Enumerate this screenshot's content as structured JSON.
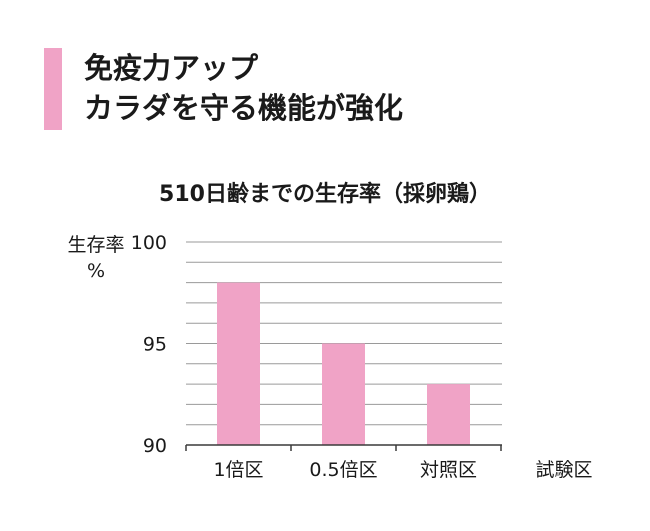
{
  "header": {
    "line1": "免疫力アップ",
    "line2": "カラダを守る機能が強化"
  },
  "chart_data": {
    "type": "bar",
    "title": "510日齢までの生存率（採卵鶏）",
    "ylabel_line1": "生存率",
    "ylabel_line2": "%",
    "ylim": [
      90,
      100
    ],
    "yticks": [
      90,
      95,
      100
    ],
    "grid": true,
    "grid_step": 1,
    "categories": [
      "1倍区",
      "0.5倍区",
      "対照区"
    ],
    "values": [
      98,
      95,
      93
    ],
    "x_axis_caption": "試験区",
    "bar_color": "#f0a3c6",
    "grid_color": "#9a9a9a"
  }
}
